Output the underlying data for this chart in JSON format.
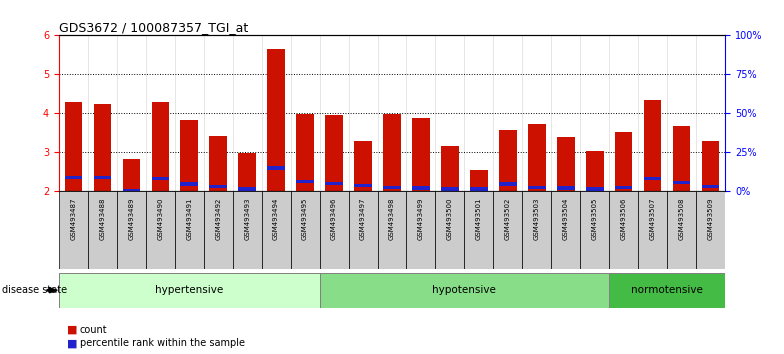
{
  "title": "GDS3672 / 100087357_TGI_at",
  "samples": [
    "GSM493487",
    "GSM493488",
    "GSM493489",
    "GSM493490",
    "GSM493491",
    "GSM493492",
    "GSM493493",
    "GSM493494",
    "GSM493495",
    "GSM493496",
    "GSM493497",
    "GSM493498",
    "GSM493499",
    "GSM493500",
    "GSM493501",
    "GSM493502",
    "GSM493503",
    "GSM493504",
    "GSM493505",
    "GSM493506",
    "GSM493507",
    "GSM493508",
    "GSM493509"
  ],
  "red_values": [
    4.28,
    4.25,
    2.82,
    4.3,
    3.82,
    3.42,
    2.98,
    5.65,
    3.98,
    3.95,
    3.28,
    3.98,
    3.88,
    3.15,
    2.55,
    3.58,
    3.72,
    3.38,
    3.02,
    3.52,
    4.35,
    3.68,
    3.3
  ],
  "blue_values": [
    2.35,
    2.35,
    2.02,
    2.32,
    2.18,
    2.12,
    2.05,
    2.6,
    2.25,
    2.2,
    2.15,
    2.1,
    2.08,
    2.05,
    2.05,
    2.18,
    2.1,
    2.08,
    2.05,
    2.1,
    2.32,
    2.22,
    2.12
  ],
  "groups": [
    {
      "label": "hypertensive",
      "start": 0,
      "end": 9,
      "color": "#ccffcc"
    },
    {
      "label": "hypotensive",
      "start": 9,
      "end": 19,
      "color": "#88dd88"
    },
    {
      "label": "normotensive",
      "start": 19,
      "end": 23,
      "color": "#44bb44"
    }
  ],
  "ylim": [
    2.0,
    6.0
  ],
  "yticks_left": [
    2,
    3,
    4,
    5,
    6
  ],
  "bar_color": "#cc1100",
  "blue_color": "#2222cc",
  "plot_bg": "#ffffff",
  "tick_bg": "#cccccc",
  "disease_state_label": "disease state",
  "legend_red": "count",
  "legend_blue": "percentile rank within the sample"
}
